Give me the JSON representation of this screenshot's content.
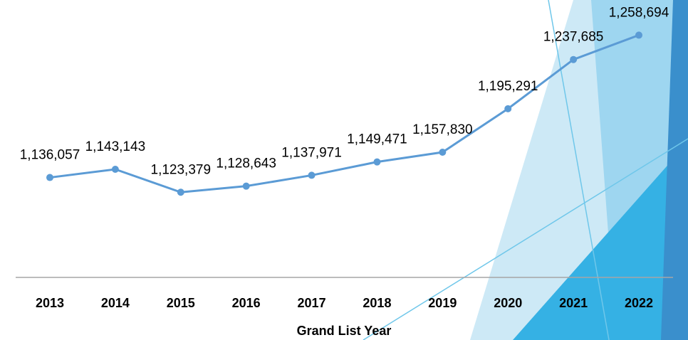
{
  "chart_data": {
    "type": "line",
    "x_label": "Grand List Year",
    "categories": [
      "2013",
      "2014",
      "2015",
      "2016",
      "2017",
      "2018",
      "2019",
      "2020",
      "2021",
      "2022"
    ],
    "values": [
      1136057,
      1143143,
      1123379,
      1128643,
      1137971,
      1149471,
      1157830,
      1195291,
      1237685,
      1258694
    ],
    "value_labels": [
      "1,136,057",
      "1,143,143",
      "1,123,379",
      "1,128,643",
      "1,137,971",
      "1,149,471",
      "1,157,830",
      "1,195,291",
      "1,237,685",
      "1,258,694"
    ],
    "color": "#5b9bd5",
    "ylim": [
      1050000,
      1300000
    ]
  }
}
